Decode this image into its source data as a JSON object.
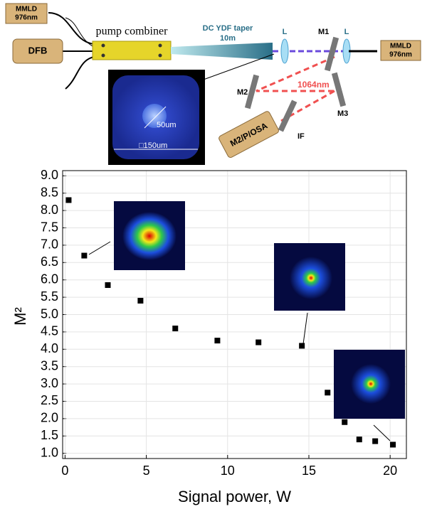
{
  "diagram": {
    "mmld_left": [
      "MMLD",
      "976nm"
    ],
    "dfb": "DFB",
    "pump_combiner": "pump combiner",
    "taper": [
      "DC YDF taper",
      "10m"
    ],
    "lens_1": "L",
    "lens_2": "L",
    "m1": "M1",
    "m2": "M2",
    "m3": "M3",
    "wavelength": "1064nm",
    "filter": "IF",
    "analyzer": "M2/P/OSA",
    "mmld_right": [
      "MMLD",
      "976nm"
    ],
    "core": "50um",
    "cladding": "□150um"
  },
  "chart_data": {
    "type": "scatter",
    "x_label": "Signal power, W",
    "y_label": "M²",
    "color": "#000000",
    "x": [
      0.22,
      1.18,
      2.63,
      4.64,
      6.78,
      9.37,
      11.9,
      14.57,
      16.15,
      17.2,
      18.1,
      19.08,
      20.17
    ],
    "values": [
      8.3,
      6.7,
      5.85,
      5.4,
      4.6,
      4.25,
      4.2,
      4.1,
      2.75,
      1.9,
      1.4,
      1.35,
      1.25
    ],
    "xlim": [
      -0.15,
      21.0
    ],
    "ylim": [
      0.85,
      9.15
    ],
    "xticks": [
      0,
      5,
      10,
      15,
      20
    ],
    "yticks": [
      {
        "value": 1,
        "label": "1.0"
      },
      1.5,
      {
        "value": 2,
        "label": "2.0"
      },
      2.5,
      {
        "value": 3,
        "label": "3.0"
      },
      3.5,
      {
        "value": 4,
        "label": "4.0"
      },
      4.5,
      {
        "value": 5,
        "label": "5.0"
      },
      5.5,
      {
        "value": 6,
        "label": "6.0"
      },
      6.5,
      {
        "value": 7,
        "label": "7.0"
      },
      7.5,
      {
        "value": 8,
        "label": "8.0"
      },
      8.5,
      {
        "value": 9,
        "label": "9.0"
      }
    ],
    "grid": true
  }
}
